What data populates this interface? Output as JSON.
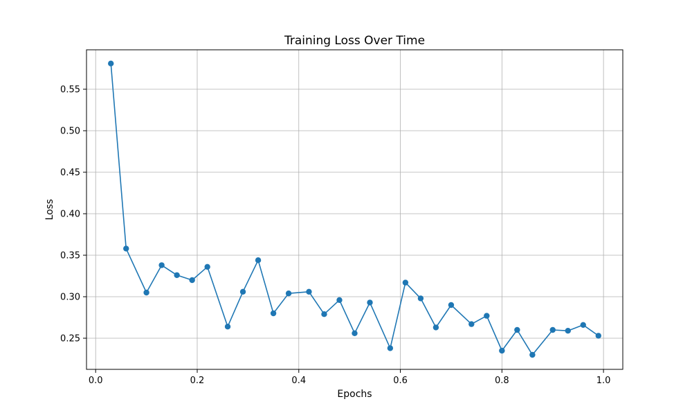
{
  "chart_data": {
    "type": "line",
    "title": "Training Loss Over Time",
    "xlabel": "Epochs",
    "ylabel": "Loss",
    "xlim": [
      -0.018,
      1.038
    ],
    "ylim": [
      0.2125,
      0.5975
    ],
    "xticks": [
      0.0,
      0.2,
      0.4,
      0.6,
      0.8,
      1.0
    ],
    "xtick_labels": [
      "0.0",
      "0.2",
      "0.4",
      "0.6",
      "0.8",
      "1.0"
    ],
    "yticks": [
      0.25,
      0.3,
      0.35,
      0.4,
      0.45,
      0.5,
      0.55
    ],
    "ytick_labels": [
      "0.25",
      "0.30",
      "0.35",
      "0.40",
      "0.45",
      "0.50",
      "0.55"
    ],
    "grid": true,
    "line_color": "#1f77b4",
    "series": [
      {
        "x": [
          0.03,
          0.06,
          0.1,
          0.13,
          0.16,
          0.19,
          0.22,
          0.26,
          0.29,
          0.32,
          0.35,
          0.38,
          0.42,
          0.45,
          0.48,
          0.51,
          0.54,
          0.58,
          0.61,
          0.64,
          0.67,
          0.7,
          0.74,
          0.77,
          0.8,
          0.83,
          0.86,
          0.9,
          0.93,
          0.96,
          0.99
        ],
        "values": [
          0.581,
          0.358,
          0.305,
          0.338,
          0.326,
          0.32,
          0.336,
          0.264,
          0.306,
          0.344,
          0.28,
          0.304,
          0.306,
          0.279,
          0.296,
          0.256,
          0.293,
          0.238,
          0.317,
          0.298,
          0.263,
          0.29,
          0.267,
          0.277,
          0.235,
          0.26,
          0.23,
          0.26,
          0.259,
          0.266,
          0.253
        ]
      }
    ]
  }
}
